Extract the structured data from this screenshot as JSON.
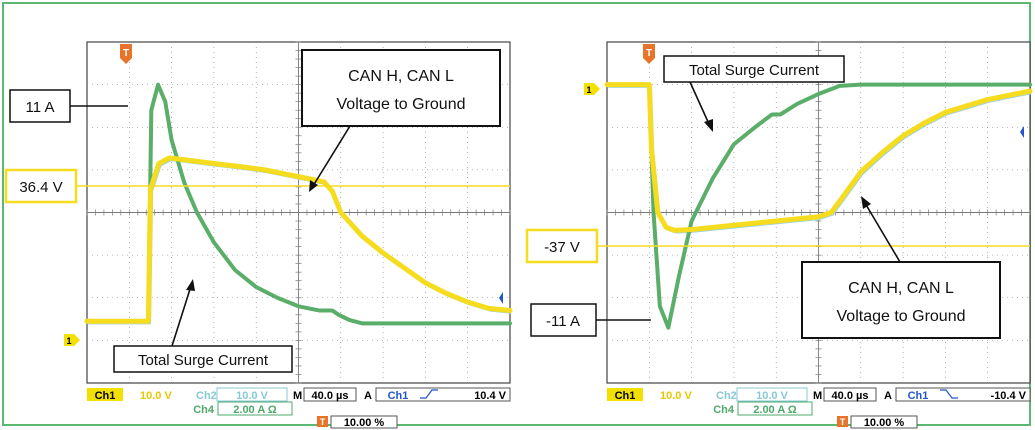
{
  "colors": {
    "frame": "#5cb870",
    "green_trace": "#5aae6a",
    "yellow_trace": "#f6dc1e",
    "cyan_trace": "#9fd3dc",
    "ch1_label_bg": "#f2e000",
    "ch2_text": "#86c9d6",
    "ch4_text": "#4daa6a",
    "trigger_marker": "#e8742a",
    "grid": "#7a7a7a"
  },
  "chart_data": [
    {
      "type": "line",
      "title": "",
      "xlabel": "",
      "ylabel": "",
      "x_divisions": 10,
      "y_divisions": 8,
      "time_per_div_us": 40,
      "ch1_ref_div": -2.55,
      "series": [
        {
          "name": "Total Surge Current",
          "color": "#5aae6a",
          "x": [
            0,
            1.45,
            1.52,
            1.68,
            1.85,
            2.0,
            2.3,
            2.6,
            3.0,
            3.5,
            4.0,
            4.5,
            5.0,
            5.5,
            5.8,
            5.95,
            6.2,
            6.5,
            7.0,
            8.0,
            9.0,
            10.0
          ],
          "y": [
            -2.55,
            -2.55,
            2.4,
            3.0,
            2.6,
            1.7,
            0.7,
            0.0,
            -0.7,
            -1.35,
            -1.75,
            -2.0,
            -2.2,
            -2.3,
            -2.3,
            -2.4,
            -2.52,
            -2.6,
            -2.6,
            -2.6,
            -2.6,
            -2.6
          ]
        },
        {
          "name": "CAN H, CAN L Voltage to Ground",
          "color": "#f6dc1e",
          "x": [
            0,
            1.45,
            1.5,
            1.7,
            1.95,
            2.2,
            2.6,
            3.0,
            3.6,
            4.2,
            4.8,
            5.3,
            5.6,
            5.8,
            6.0,
            6.5,
            7.0,
            7.5,
            8.0,
            8.5,
            9.0,
            9.5,
            10.0
          ],
          "y": [
            -2.55,
            -2.55,
            0.55,
            1.15,
            1.28,
            1.25,
            1.2,
            1.15,
            1.08,
            1.0,
            0.88,
            0.78,
            0.72,
            0.5,
            0.0,
            -0.55,
            -0.95,
            -1.3,
            -1.65,
            -1.9,
            -2.1,
            -2.25,
            -2.3
          ]
        }
      ],
      "annotations": {
        "current_peak": "11 A",
        "voltage_level": "36.4 V",
        "can_label_line1": "CAN H, CAN L",
        "can_label_line2": "Voltage to Ground",
        "surge_label": "Total Surge Current"
      }
    },
    {
      "type": "line",
      "title": "",
      "xlabel": "",
      "ylabel": "",
      "x_divisions": 10,
      "y_divisions": 8,
      "time_per_div_us": 40,
      "ch1_ref_div": 3.0,
      "series": [
        {
          "name": "Total Surge Current",
          "color": "#5aae6a",
          "x": [
            0,
            1.0,
            1.1,
            1.25,
            1.45,
            1.7,
            2.0,
            2.5,
            3.0,
            3.5,
            3.9,
            4.1,
            4.5,
            5.0,
            5.5,
            6.0,
            7.0,
            8.0,
            9.0,
            10.0
          ],
          "y": [
            3.0,
            3.0,
            0.0,
            -2.2,
            -2.7,
            -1.5,
            -0.2,
            0.8,
            1.6,
            2.0,
            2.3,
            2.3,
            2.55,
            2.78,
            2.97,
            3.0,
            3.0,
            3.0,
            3.0,
            3.0
          ]
        },
        {
          "name": "CAN H, CAN L Voltage to Ground",
          "color": "#f6dc1e",
          "x": [
            0,
            1.0,
            1.05,
            1.2,
            1.4,
            1.6,
            2.0,
            3.0,
            4.0,
            5.0,
            5.3,
            5.6,
            6.0,
            6.5,
            7.0,
            7.5,
            8.0,
            8.5,
            9.0,
            9.5,
            10.0
          ],
          "y": [
            3.0,
            3.0,
            1.5,
            0.0,
            -0.35,
            -0.42,
            -0.4,
            -0.3,
            -0.2,
            -0.1,
            0.0,
            0.4,
            0.95,
            1.4,
            1.8,
            2.1,
            2.35,
            2.5,
            2.65,
            2.75,
            2.85
          ]
        }
      ],
      "annotations": {
        "voltage_level": "-37 V",
        "current_peak": "-11 A",
        "can_label_line1": "CAN H, CAN L",
        "can_label_line2": "Voltage to Ground",
        "surge_label": "Total Surge Current"
      }
    }
  ],
  "scope_left": {
    "ch1_label": "Ch1",
    "ch1_value": "10.0 V",
    "ch2_label": "Ch2",
    "ch2_value": "10.0 V",
    "ch4_label": "Ch4",
    "ch4_value": "2.00 A Ω",
    "m_label": "M",
    "m_value": "40.0 µs",
    "a_label": "A",
    "a_channel": "Ch1",
    "a_level": "10.4 V",
    "t_label": "T",
    "t_value": "10.00 %",
    "ref_marker": "1",
    "trigger_marker": "T"
  },
  "scope_right": {
    "ch1_label": "Ch1",
    "ch1_value": "10.0 V",
    "ch2_label": "Ch2",
    "ch2_value": "10.0 V",
    "ch4_label": "Ch4",
    "ch4_value": "2.00 A Ω",
    "m_label": "M",
    "m_value": "40.0 µs",
    "a_label": "A",
    "a_channel": "Ch1",
    "a_level": "-10.4 V",
    "t_label": "T",
    "t_value": "10.00 %",
    "ref_marker": "1",
    "trigger_marker": "T"
  }
}
